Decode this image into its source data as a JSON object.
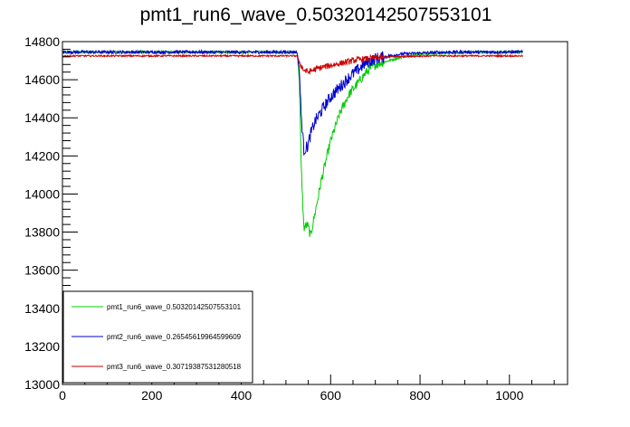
{
  "chart_data": {
    "type": "line",
    "title": "pmt1_run6_wave_0.50320142507553101",
    "xlabel": "",
    "ylabel": "",
    "xlim": [
      0,
      1130
    ],
    "ylim": [
      13000,
      14800
    ],
    "x_ticks": [
      0,
      200,
      400,
      600,
      800,
      1000
    ],
    "y_ticks": [
      13000,
      13200,
      13400,
      13600,
      13800,
      14000,
      14200,
      14400,
      14600,
      14800
    ],
    "x_tick_labels": [
      "0",
      "200",
      "400",
      "600",
      "800",
      "1000"
    ],
    "y_tick_labels": [
      "13000",
      "13200",
      "13400",
      "13600",
      "13800",
      "14000",
      "14200",
      "14400",
      "14600",
      "14800"
    ],
    "grid": false,
    "legend_position": "bottom-left",
    "series": [
      {
        "name": "pmt1_run6_wave_0.50320142507553101",
        "color": "#00cc00",
        "x": [
          0,
          100,
          200,
          300,
          400,
          500,
          525,
          530,
          534,
          540,
          548,
          555,
          565,
          580,
          600,
          620,
          640,
          660,
          680,
          700,
          730,
          760,
          800,
          860,
          920,
          1000,
          1030
        ],
        "y": [
          14745,
          14745,
          14745,
          14745,
          14745,
          14745,
          14745,
          14600,
          14150,
          13820,
          13840,
          13780,
          13900,
          14080,
          14280,
          14420,
          14520,
          14580,
          14640,
          14680,
          14700,
          14720,
          14735,
          14740,
          14745,
          14745,
          14745
        ],
        "noise": 6
      },
      {
        "name": "pmt2_run6_wave_0.26545619964599609",
        "color": "#0000cc",
        "x": [
          0,
          100,
          200,
          300,
          400,
          500,
          525,
          530,
          534,
          540,
          548,
          556,
          565,
          580,
          600,
          620,
          640,
          660,
          680,
          700,
          730,
          760,
          800,
          860,
          920,
          1000,
          1030
        ],
        "y": [
          14745,
          14745,
          14745,
          14745,
          14745,
          14745,
          14745,
          14650,
          14420,
          14230,
          14250,
          14320,
          14380,
          14440,
          14510,
          14560,
          14610,
          14650,
          14690,
          14710,
          14725,
          14735,
          14740,
          14745,
          14745,
          14745,
          14745
        ],
        "noise": 8
      },
      {
        "name": "pmt3_run6_wave_0.30719387531280518",
        "color": "#cc0000",
        "x": [
          0,
          100,
          200,
          300,
          400,
          500,
          525,
          530,
          540,
          550,
          560,
          580,
          600,
          630,
          660,
          700,
          760,
          820,
          900,
          1000,
          1030
        ],
        "y": [
          14725,
          14725,
          14725,
          14725,
          14725,
          14725,
          14725,
          14690,
          14650,
          14640,
          14650,
          14665,
          14675,
          14690,
          14705,
          14715,
          14722,
          14725,
          14725,
          14725,
          14725
        ],
        "noise": 4
      }
    ]
  }
}
